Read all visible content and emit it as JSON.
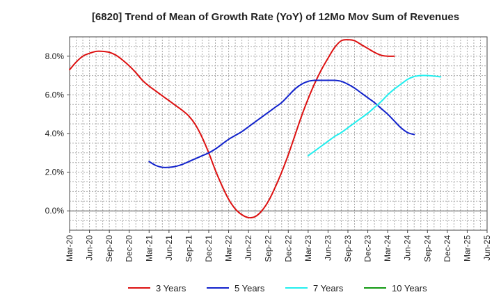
{
  "chart_data": {
    "type": "line",
    "title": "[6820]  Trend of Mean of Growth Rate (YoY) of 12Mo Mov Sum of Revenues",
    "xlabel": "",
    "ylabel": "",
    "ylim": [
      -1.0,
      9.0
    ],
    "y_ticks": [
      0.0,
      2.0,
      4.0,
      6.0,
      8.0
    ],
    "y_tick_labels": [
      "0.0%",
      "2.0%",
      "4.0%",
      "6.0%",
      "8.0%"
    ],
    "grid": true,
    "legend_position": "bottom",
    "x_tick_labels": [
      "Mar-20",
      "Jun-20",
      "Sep-20",
      "Dec-20",
      "Mar-21",
      "Jun-21",
      "Sep-21",
      "Dec-21",
      "Mar-22",
      "Jun-22",
      "Sep-22",
      "Dec-22",
      "Mar-23",
      "Jun-23",
      "Sep-23",
      "Dec-23",
      "Mar-24",
      "Jun-24",
      "Sep-24",
      "Dec-24",
      "Mar-25",
      "Jun-25"
    ],
    "series": [
      {
        "name": "3 Years",
        "color": "#dd1111",
        "start_index": 0,
        "values": [
          7.3,
          7.7,
          8.0,
          8.15,
          8.25,
          8.25,
          8.2,
          8.05,
          7.8,
          7.5,
          7.15,
          6.75,
          6.45,
          6.2,
          5.95,
          5.7,
          5.45,
          5.2,
          4.9,
          4.45,
          3.8,
          3.0,
          2.1,
          1.3,
          0.6,
          0.1,
          -0.2,
          -0.35,
          -0.3,
          0.0,
          0.5,
          1.2,
          2.0,
          2.9,
          3.9,
          4.9,
          5.8,
          6.6,
          7.3,
          7.9,
          8.45,
          8.8,
          8.85,
          8.8,
          8.6,
          8.4,
          8.2,
          8.05,
          8.0,
          8.0
        ]
      },
      {
        "name": "5 Years",
        "color": "#1122cc",
        "start_index": 12,
        "values": [
          2.55,
          2.35,
          2.25,
          2.25,
          2.3,
          2.4,
          2.55,
          2.7,
          2.85,
          3.0,
          3.2,
          3.45,
          3.7,
          3.9,
          4.1,
          4.35,
          4.6,
          4.85,
          5.1,
          5.35,
          5.6,
          5.95,
          6.3,
          6.55,
          6.7,
          6.75,
          6.75,
          6.75,
          6.75,
          6.7,
          6.55,
          6.35,
          6.1,
          5.85,
          5.6,
          5.3,
          5.0,
          4.65,
          4.3,
          4.05,
          3.95
        ]
      },
      {
        "name": "7 Years",
        "color": "#22eeee",
        "start_index": 36,
        "values": [
          2.85,
          3.1,
          3.35,
          3.6,
          3.85,
          4.05,
          4.3,
          4.55,
          4.8,
          5.05,
          5.35,
          5.65,
          6.0,
          6.3,
          6.55,
          6.8,
          6.95,
          7.0,
          7.0,
          6.97,
          6.93
        ]
      },
      {
        "name": "10 Years",
        "color": "#119911",
        "start_index": 0,
        "values": []
      }
    ]
  }
}
